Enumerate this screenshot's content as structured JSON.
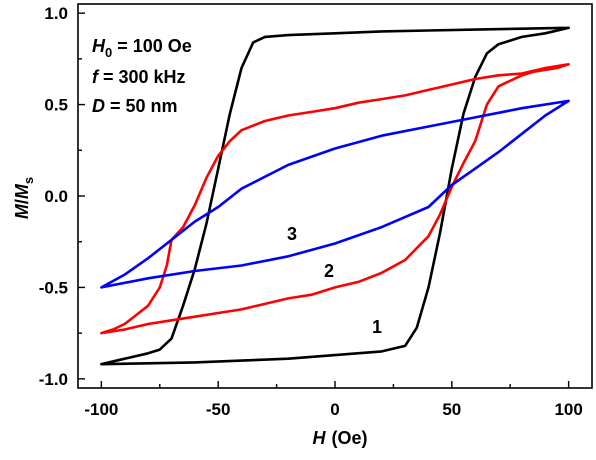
{
  "chart_data": {
    "type": "line",
    "xlabel": {
      "symbol": "H",
      "unit": "(Oe)"
    },
    "ylabel": {
      "symbol": "M",
      "slash": "/",
      "denominator": "M",
      "subscript": "s"
    },
    "xlim": [
      -110,
      110
    ],
    "ylim": [
      -1.05,
      1.05
    ],
    "xticks": [
      -100,
      -50,
      0,
      50,
      100
    ],
    "xtick_labels": [
      "-100",
      "-50",
      "0",
      "50",
      "100"
    ],
    "yticks": [
      -1.0,
      -0.5,
      0.0,
      0.5,
      1.0
    ],
    "ytick_labels": [
      "-1.0",
      "-0.5",
      "0.0",
      "0.5",
      "1.0"
    ],
    "grid": false,
    "annotations": [
      {
        "symbol": "H",
        "subscript": "0",
        "text": " = 100 Oe"
      },
      {
        "symbol": "f",
        "subscript": "",
        "text": " = 300 kHz"
      },
      {
        "symbol": "D",
        "subscript": "",
        "text": " = 50 nm"
      }
    ],
    "series": [
      {
        "label": "1",
        "color": "#000000",
        "upper_branch": {
          "x": [
            100,
            80,
            60,
            40,
            20,
            0,
            -20,
            -30,
            -35,
            -40,
            -45,
            -50,
            -55,
            -60,
            -65,
            -70,
            -75,
            -80,
            -90,
            -100
          ],
          "y": [
            0.92,
            0.915,
            0.91,
            0.905,
            0.9,
            0.89,
            0.88,
            0.87,
            0.84,
            0.7,
            0.45,
            0.15,
            -0.15,
            -0.4,
            -0.6,
            -0.78,
            -0.84,
            -0.86,
            -0.89,
            -0.92
          ]
        },
        "lower_branch": {
          "x": [
            -100,
            -80,
            -60,
            -40,
            -20,
            0,
            20,
            30,
            35,
            40,
            45,
            50,
            55,
            60,
            65,
            70,
            75,
            80,
            90,
            100
          ],
          "y": [
            -0.92,
            -0.915,
            -0.91,
            -0.9,
            -0.89,
            -0.87,
            -0.85,
            -0.82,
            -0.72,
            -0.5,
            -0.2,
            0.15,
            0.45,
            0.65,
            0.78,
            0.83,
            0.85,
            0.87,
            0.89,
            0.92
          ]
        }
      },
      {
        "label": "2",
        "color": "#ff0000",
        "upper_branch": {
          "x": [
            100,
            90,
            80,
            70,
            60,
            50,
            40,
            30,
            20,
            10,
            0,
            -10,
            -20,
            -30,
            -40,
            -45,
            -50,
            -55,
            -60,
            -65,
            -70,
            -72,
            -75,
            -80,
            -85,
            -90,
            -95,
            -100
          ],
          "y": [
            0.72,
            0.7,
            0.67,
            0.66,
            0.64,
            0.61,
            0.58,
            0.55,
            0.53,
            0.51,
            0.48,
            0.46,
            0.44,
            0.41,
            0.36,
            0.3,
            0.22,
            0.1,
            -0.05,
            -0.17,
            -0.24,
            -0.38,
            -0.5,
            -0.6,
            -0.65,
            -0.7,
            -0.73,
            -0.75
          ]
        },
        "lower_branch": {
          "x": [
            -100,
            -90,
            -80,
            -70,
            -60,
            -50,
            -40,
            -30,
            -20,
            -10,
            0,
            10,
            20,
            30,
            40,
            45,
            50,
            55,
            60,
            65,
            70,
            75,
            80,
            85,
            90,
            95,
            100
          ],
          "y": [
            -0.75,
            -0.73,
            -0.7,
            -0.68,
            -0.66,
            -0.64,
            -0.62,
            -0.59,
            -0.56,
            -0.54,
            -0.5,
            -0.47,
            -0.42,
            -0.35,
            -0.22,
            -0.1,
            0.05,
            0.18,
            0.3,
            0.5,
            0.6,
            0.63,
            0.66,
            0.68,
            0.69,
            0.7,
            0.72
          ]
        }
      },
      {
        "label": "3",
        "color": "#0000ff",
        "upper_branch": {
          "x": [
            100,
            80,
            60,
            40,
            20,
            0,
            -20,
            -40,
            -50,
            -60,
            -70,
            -80,
            -90,
            -100
          ],
          "y": [
            0.52,
            0.48,
            0.43,
            0.38,
            0.33,
            0.26,
            0.17,
            0.04,
            -0.06,
            -0.14,
            -0.24,
            -0.34,
            -0.43,
            -0.5
          ]
        },
        "lower_branch": {
          "x": [
            -100,
            -80,
            -60,
            -40,
            -20,
            0,
            20,
            40,
            50,
            60,
            70,
            80,
            90,
            100
          ],
          "y": [
            -0.5,
            -0.45,
            -0.41,
            -0.38,
            -0.33,
            -0.26,
            -0.17,
            -0.06,
            0.06,
            0.15,
            0.24,
            0.34,
            0.44,
            0.52
          ]
        }
      }
    ]
  }
}
